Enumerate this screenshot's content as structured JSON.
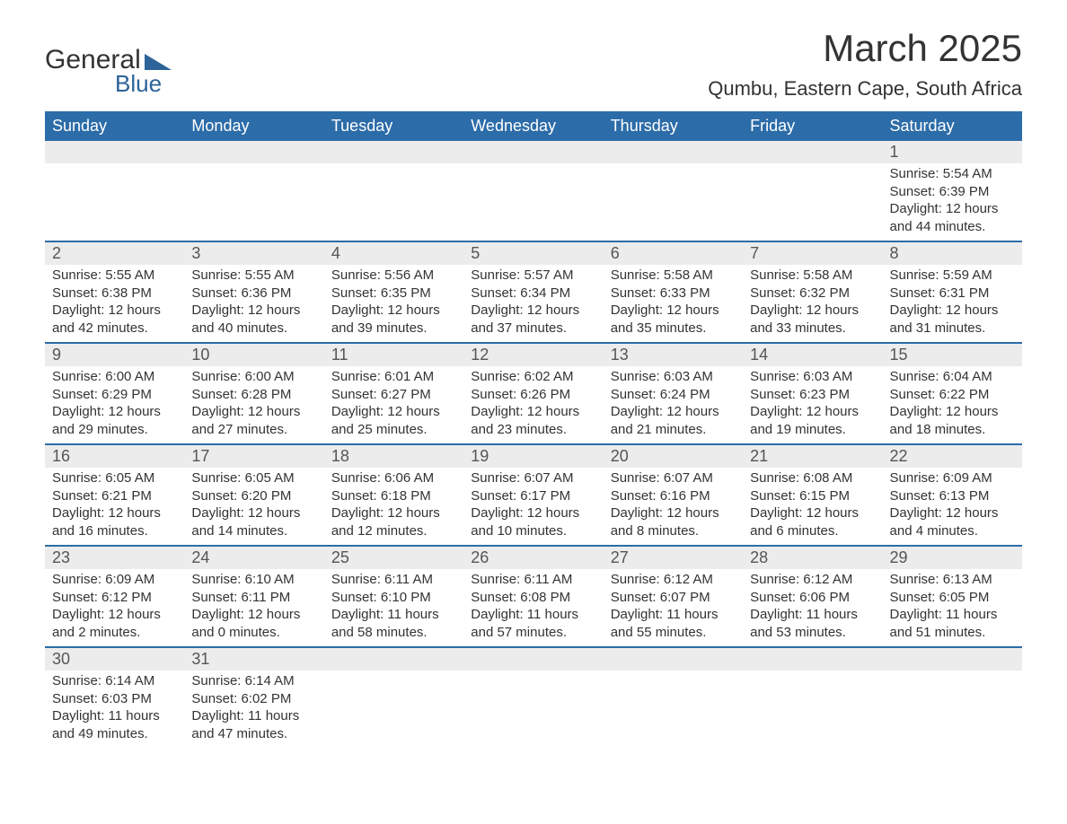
{
  "logo": {
    "text_general": "General",
    "text_blue": "Blue"
  },
  "title": "March 2025",
  "location": "Qumbu, Eastern Cape, South Africa",
  "colors": {
    "header_bg": "#2c6ca8",
    "header_text": "#ffffff",
    "row_alt_bg": "#ececec",
    "border": "#2c6ca8",
    "text": "#333333",
    "logo_blue": "#2c6398"
  },
  "headers": [
    "Sunday",
    "Monday",
    "Tuesday",
    "Wednesday",
    "Thursday",
    "Friday",
    "Saturday"
  ],
  "weeks": [
    [
      null,
      null,
      null,
      null,
      null,
      null,
      {
        "n": "1",
        "sunrise": "Sunrise: 5:54 AM",
        "sunset": "Sunset: 6:39 PM",
        "daylight": "Daylight: 12 hours and 44 minutes."
      }
    ],
    [
      {
        "n": "2",
        "sunrise": "Sunrise: 5:55 AM",
        "sunset": "Sunset: 6:38 PM",
        "daylight": "Daylight: 12 hours and 42 minutes."
      },
      {
        "n": "3",
        "sunrise": "Sunrise: 5:55 AM",
        "sunset": "Sunset: 6:36 PM",
        "daylight": "Daylight: 12 hours and 40 minutes."
      },
      {
        "n": "4",
        "sunrise": "Sunrise: 5:56 AM",
        "sunset": "Sunset: 6:35 PM",
        "daylight": "Daylight: 12 hours and 39 minutes."
      },
      {
        "n": "5",
        "sunrise": "Sunrise: 5:57 AM",
        "sunset": "Sunset: 6:34 PM",
        "daylight": "Daylight: 12 hours and 37 minutes."
      },
      {
        "n": "6",
        "sunrise": "Sunrise: 5:58 AM",
        "sunset": "Sunset: 6:33 PM",
        "daylight": "Daylight: 12 hours and 35 minutes."
      },
      {
        "n": "7",
        "sunrise": "Sunrise: 5:58 AM",
        "sunset": "Sunset: 6:32 PM",
        "daylight": "Daylight: 12 hours and 33 minutes."
      },
      {
        "n": "8",
        "sunrise": "Sunrise: 5:59 AM",
        "sunset": "Sunset: 6:31 PM",
        "daylight": "Daylight: 12 hours and 31 minutes."
      }
    ],
    [
      {
        "n": "9",
        "sunrise": "Sunrise: 6:00 AM",
        "sunset": "Sunset: 6:29 PM",
        "daylight": "Daylight: 12 hours and 29 minutes."
      },
      {
        "n": "10",
        "sunrise": "Sunrise: 6:00 AM",
        "sunset": "Sunset: 6:28 PM",
        "daylight": "Daylight: 12 hours and 27 minutes."
      },
      {
        "n": "11",
        "sunrise": "Sunrise: 6:01 AM",
        "sunset": "Sunset: 6:27 PM",
        "daylight": "Daylight: 12 hours and 25 minutes."
      },
      {
        "n": "12",
        "sunrise": "Sunrise: 6:02 AM",
        "sunset": "Sunset: 6:26 PM",
        "daylight": "Daylight: 12 hours and 23 minutes."
      },
      {
        "n": "13",
        "sunrise": "Sunrise: 6:03 AM",
        "sunset": "Sunset: 6:24 PM",
        "daylight": "Daylight: 12 hours and 21 minutes."
      },
      {
        "n": "14",
        "sunrise": "Sunrise: 6:03 AM",
        "sunset": "Sunset: 6:23 PM",
        "daylight": "Daylight: 12 hours and 19 minutes."
      },
      {
        "n": "15",
        "sunrise": "Sunrise: 6:04 AM",
        "sunset": "Sunset: 6:22 PM",
        "daylight": "Daylight: 12 hours and 18 minutes."
      }
    ],
    [
      {
        "n": "16",
        "sunrise": "Sunrise: 6:05 AM",
        "sunset": "Sunset: 6:21 PM",
        "daylight": "Daylight: 12 hours and 16 minutes."
      },
      {
        "n": "17",
        "sunrise": "Sunrise: 6:05 AM",
        "sunset": "Sunset: 6:20 PM",
        "daylight": "Daylight: 12 hours and 14 minutes."
      },
      {
        "n": "18",
        "sunrise": "Sunrise: 6:06 AM",
        "sunset": "Sunset: 6:18 PM",
        "daylight": "Daylight: 12 hours and 12 minutes."
      },
      {
        "n": "19",
        "sunrise": "Sunrise: 6:07 AM",
        "sunset": "Sunset: 6:17 PM",
        "daylight": "Daylight: 12 hours and 10 minutes."
      },
      {
        "n": "20",
        "sunrise": "Sunrise: 6:07 AM",
        "sunset": "Sunset: 6:16 PM",
        "daylight": "Daylight: 12 hours and 8 minutes."
      },
      {
        "n": "21",
        "sunrise": "Sunrise: 6:08 AM",
        "sunset": "Sunset: 6:15 PM",
        "daylight": "Daylight: 12 hours and 6 minutes."
      },
      {
        "n": "22",
        "sunrise": "Sunrise: 6:09 AM",
        "sunset": "Sunset: 6:13 PM",
        "daylight": "Daylight: 12 hours and 4 minutes."
      }
    ],
    [
      {
        "n": "23",
        "sunrise": "Sunrise: 6:09 AM",
        "sunset": "Sunset: 6:12 PM",
        "daylight": "Daylight: 12 hours and 2 minutes."
      },
      {
        "n": "24",
        "sunrise": "Sunrise: 6:10 AM",
        "sunset": "Sunset: 6:11 PM",
        "daylight": "Daylight: 12 hours and 0 minutes."
      },
      {
        "n": "25",
        "sunrise": "Sunrise: 6:11 AM",
        "sunset": "Sunset: 6:10 PM",
        "daylight": "Daylight: 11 hours and 58 minutes."
      },
      {
        "n": "26",
        "sunrise": "Sunrise: 6:11 AM",
        "sunset": "Sunset: 6:08 PM",
        "daylight": "Daylight: 11 hours and 57 minutes."
      },
      {
        "n": "27",
        "sunrise": "Sunrise: 6:12 AM",
        "sunset": "Sunset: 6:07 PM",
        "daylight": "Daylight: 11 hours and 55 minutes."
      },
      {
        "n": "28",
        "sunrise": "Sunrise: 6:12 AM",
        "sunset": "Sunset: 6:06 PM",
        "daylight": "Daylight: 11 hours and 53 minutes."
      },
      {
        "n": "29",
        "sunrise": "Sunrise: 6:13 AM",
        "sunset": "Sunset: 6:05 PM",
        "daylight": "Daylight: 11 hours and 51 minutes."
      }
    ],
    [
      {
        "n": "30",
        "sunrise": "Sunrise: 6:14 AM",
        "sunset": "Sunset: 6:03 PM",
        "daylight": "Daylight: 11 hours and 49 minutes."
      },
      {
        "n": "31",
        "sunrise": "Sunrise: 6:14 AM",
        "sunset": "Sunset: 6:02 PM",
        "daylight": "Daylight: 11 hours and 47 minutes."
      },
      null,
      null,
      null,
      null,
      null
    ]
  ]
}
